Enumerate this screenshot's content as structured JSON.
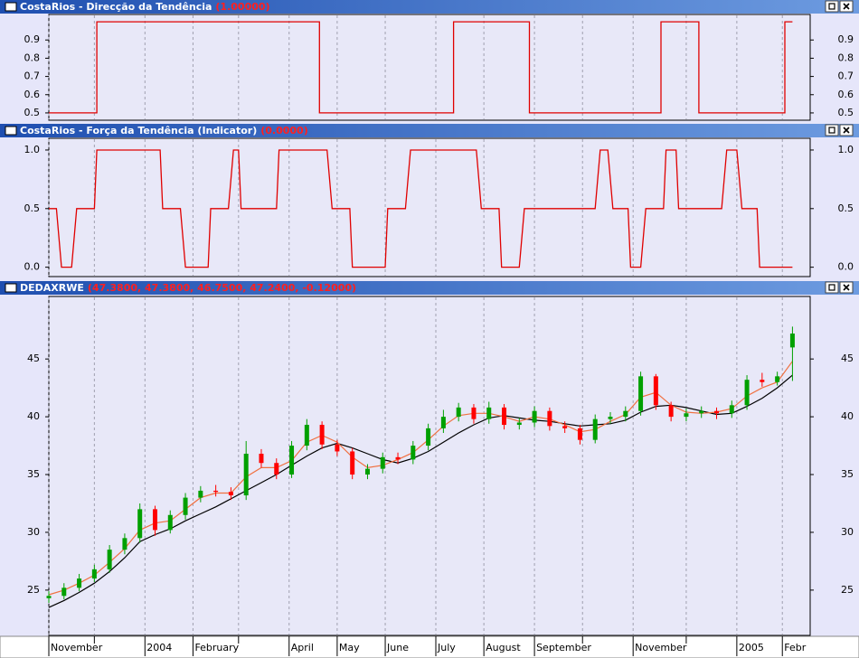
{
  "chart_data": [
    {
      "type": "step",
      "title": "CostaRios - Direcção da Tendência",
      "last_value": "(1.00000)",
      "color": "#e00000",
      "xlim": [
        0,
        301
      ],
      "ylim": [
        0.46,
        1.04
      ],
      "yticks": [
        0.5,
        0.6,
        0.7,
        0.8,
        0.9
      ],
      "x": [
        0,
        19,
        19,
        107,
        107,
        160,
        160,
        190,
        190,
        242,
        242,
        257,
        257,
        291,
        291,
        294
      ],
      "values": [
        0.5,
        0.5,
        1,
        1,
        0.5,
        0.5,
        1,
        1,
        0.5,
        0.5,
        1,
        1,
        0.5,
        0.5,
        1,
        1
      ]
    },
    {
      "type": "step",
      "title": "CostaRios - Força da Tendência (Indicator)",
      "last_value": "(0.0000)",
      "color": "#e00000",
      "xlim": [
        0,
        301
      ],
      "ylim": [
        -0.08,
        1.1
      ],
      "yticks": [
        {
          "value": 0,
          "label": "0.0"
        },
        0.5,
        {
          "value": 1,
          "label": "1.0"
        }
      ],
      "x": [
        0,
        3,
        5,
        9,
        11,
        18,
        19,
        44,
        45,
        52,
        54,
        63,
        64,
        71,
        73,
        75,
        76,
        90,
        91,
        110,
        112,
        119,
        120,
        133,
        134,
        141,
        143,
        169,
        171,
        178,
        179,
        186,
        188,
        216,
        218,
        221,
        223,
        229,
        230,
        234,
        236,
        243,
        244,
        248,
        249,
        266,
        268,
        272,
        274,
        280,
        281,
        294
      ],
      "values": [
        0.5,
        0.5,
        0,
        0,
        0.5,
        0.5,
        1,
        1,
        0.5,
        0.5,
        0,
        0,
        0.5,
        0.5,
        1,
        1,
        0.5,
        0.5,
        1,
        1,
        0.5,
        0.5,
        0,
        0,
        0.5,
        0.5,
        1,
        1,
        0.5,
        0.5,
        0,
        0,
        0.5,
        0.5,
        1,
        1,
        0.5,
        0.5,
        0,
        0,
        0.5,
        0.5,
        1,
        1,
        0.5,
        0.5,
        1,
        1,
        0.5,
        0.5,
        0,
        0
      ]
    },
    {
      "type": "candlestick",
      "title": "DEDAXRWE",
      "last_value": "(47.3800, 47.3800, 46.7500, 47.2400, -0.12000)",
      "up_color": "#00a000",
      "down_color": "#ff0000",
      "xlim": [
        0,
        301
      ],
      "ylim": [
        21.08,
        50.41
      ],
      "yticks": [
        25,
        30,
        35,
        40,
        45
      ],
      "grid": "x",
      "xticks": [
        {
          "value": 0,
          "label": "November"
        },
        {
          "value": 18,
          "label": null
        },
        {
          "value": 38,
          "label": "2004"
        },
        {
          "value": 57,
          "label": "February"
        },
        {
          "value": 75,
          "label": null
        },
        {
          "value": 95,
          "label": "April"
        },
        {
          "value": 114,
          "label": "May"
        },
        {
          "value": 133,
          "label": "June"
        },
        {
          "value": 153,
          "label": "July"
        },
        {
          "value": 172,
          "label": "August"
        },
        {
          "value": 192,
          "label": "September"
        },
        {
          "value": 211,
          "label": null
        },
        {
          "value": 231,
          "label": "November"
        },
        {
          "value": 252,
          "label": null
        },
        {
          "value": 272,
          "label": "2005"
        },
        {
          "value": 290,
          "label": "Febr"
        }
      ],
      "x": [
        0,
        6,
        12,
        18,
        24,
        30,
        36,
        42,
        48,
        54,
        60,
        66,
        72,
        78,
        84,
        90,
        96,
        102,
        108,
        114,
        120,
        126,
        132,
        138,
        144,
        150,
        156,
        162,
        168,
        174,
        180,
        186,
        192,
        198,
        204,
        210,
        216,
        222,
        228,
        234,
        240,
        246,
        252,
        258,
        264,
        270,
        276,
        282,
        288,
        294
      ],
      "open": [
        24.3,
        24.5,
        25.2,
        26.0,
        26.8,
        28.5,
        29.5,
        32.0,
        30.2,
        31.5,
        33.0,
        33.6,
        33.5,
        33.2,
        36.8,
        36.0,
        35.0,
        37.5,
        39.3,
        37.6,
        37.0,
        35.0,
        35.5,
        36.5,
        36.3,
        37.5,
        39.0,
        40.0,
        40.8,
        39.8,
        40.8,
        39.3,
        39.5,
        40.5,
        39.2,
        39.0,
        38.0,
        39.8,
        40.0,
        40.5,
        43.5,
        41.0,
        40.0,
        40.3,
        40.5,
        40.3,
        41.0,
        43.2,
        43.0,
        46.0
      ],
      "high": [
        24.9,
        25.6,
        26.4,
        27.2,
        28.9,
        29.9,
        32.5,
        32.3,
        31.9,
        33.4,
        34.0,
        34.1,
        33.9,
        37.9,
        37.2,
        36.4,
        37.9,
        39.8,
        39.6,
        38.0,
        37.3,
        35.9,
        36.9,
        36.9,
        37.9,
        39.4,
        40.6,
        41.2,
        41.1,
        41.3,
        41.1,
        39.9,
        40.9,
        40.8,
        39.6,
        39.3,
        40.2,
        40.4,
        40.9,
        43.9,
        43.7,
        41.3,
        40.7,
        40.9,
        40.8,
        41.4,
        43.6,
        43.8,
        43.9,
        47.8
      ],
      "low": [
        23.9,
        24.2,
        24.9,
        25.7,
        26.5,
        28.1,
        29.1,
        29.7,
        29.9,
        31.1,
        32.6,
        33.1,
        32.8,
        32.8,
        35.6,
        34.6,
        34.7,
        37.1,
        37.2,
        36.6,
        34.6,
        34.6,
        35.1,
        35.9,
        35.9,
        37.1,
        38.6,
        39.6,
        39.4,
        39.4,
        38.9,
        38.9,
        39.1,
        38.8,
        38.6,
        37.6,
        37.7,
        39.4,
        39.6,
        40.1,
        40.6,
        39.6,
        39.6,
        39.9,
        39.8,
        39.9,
        40.6,
        42.6,
        42.7,
        43.1
      ],
      "close": [
        24.5,
        25.2,
        26.0,
        26.8,
        28.5,
        29.5,
        32.0,
        30.2,
        31.5,
        33.0,
        33.6,
        33.5,
        33.2,
        36.8,
        36.0,
        35.0,
        37.5,
        39.3,
        37.6,
        37.0,
        35.0,
        35.5,
        36.5,
        36.3,
        37.5,
        39.0,
        40.0,
        40.8,
        39.8,
        40.8,
        39.3,
        39.5,
        40.5,
        39.2,
        39.0,
        38.0,
        39.8,
        40.0,
        40.5,
        43.5,
        41.0,
        40.0,
        40.3,
        40.5,
        40.3,
        41.0,
        43.2,
        43.0,
        43.5,
        47.2
      ],
      "series": [
        {
          "color": "#000000",
          "values": [
            23.5,
            24.1,
            24.8,
            25.6,
            26.6,
            27.8,
            29.2,
            29.8,
            30.3,
            31.0,
            31.6,
            32.2,
            32.9,
            33.6,
            34.3,
            35.0,
            35.8,
            36.6,
            37.3,
            37.7,
            37.3,
            36.8,
            36.3,
            36.0,
            36.4,
            37.0,
            37.8,
            38.6,
            39.3,
            39.9,
            40.1,
            39.9,
            39.7,
            39.6,
            39.4,
            39.2,
            39.3,
            39.4,
            39.7,
            40.4,
            40.9,
            41.0,
            40.8,
            40.5,
            40.2,
            40.3,
            40.9,
            41.6,
            42.5,
            43.6
          ]
        },
        {
          "color": "#f07040",
          "values": [
            24.6,
            25.0,
            25.6,
            26.3,
            27.4,
            28.6,
            30.2,
            30.8,
            31.0,
            32.0,
            33.0,
            33.4,
            33.4,
            34.8,
            35.6,
            35.6,
            36.2,
            37.8,
            38.4,
            37.8,
            36.5,
            35.6,
            35.8,
            36.3,
            36.9,
            38.0,
            39.2,
            40.1,
            40.3,
            40.3,
            40.0,
            39.6,
            40.0,
            39.8,
            39.3,
            38.7,
            38.9,
            39.6,
            40.2,
            41.7,
            42.1,
            41.0,
            40.4,
            40.3,
            40.4,
            40.7,
            41.8,
            42.5,
            43.0,
            44.8
          ]
        }
      ]
    }
  ]
}
